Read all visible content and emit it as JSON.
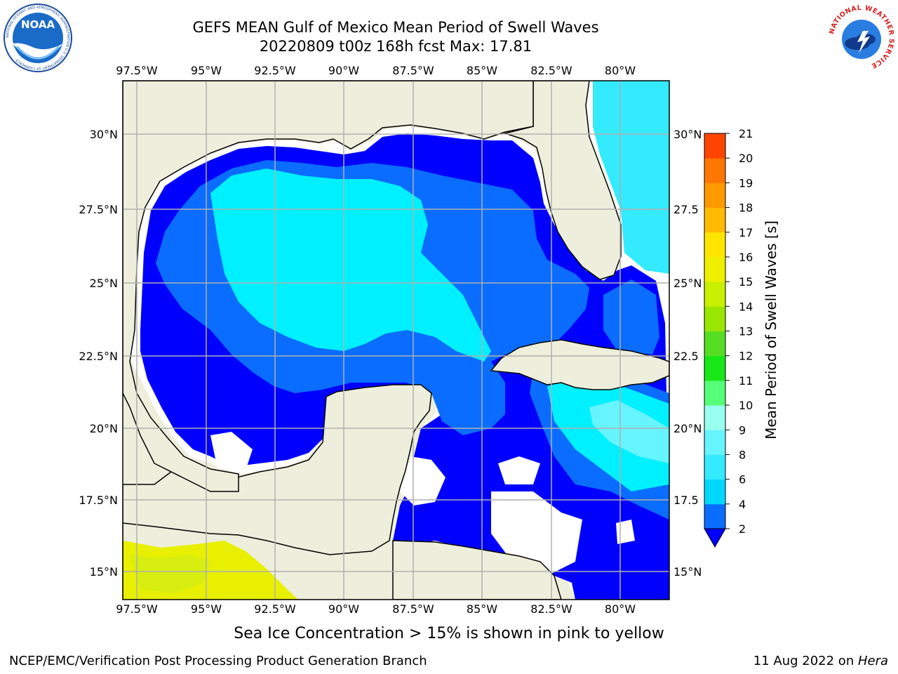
{
  "header": {
    "title_line1": "GEFS MEAN Gulf of Mexico Mean Period of Swell Waves",
    "title_line2": "20220809 t00z 168h fcst   Max: 17.81"
  },
  "logos": {
    "noaa_text": "NOAA",
    "noaa_ring": "NATIONAL OCEANIC AND ATMOSPHERIC ADMINISTRATION  U.S. DEPARTMENT OF COMMERCE",
    "nws_ring": "NATIONAL WEATHER SERVICE"
  },
  "map": {
    "lon_labels": [
      "97.5°W",
      "95°W",
      "92.5°W",
      "90°W",
      "87.5°W",
      "85°W",
      "82.5°W",
      "80°W"
    ],
    "lat_labels": [
      "30°N",
      "27.5°N",
      "25°N",
      "22.5°N",
      "20°N",
      "17.5°N",
      "15°N"
    ],
    "lat_labels_right": [
      "30°N",
      "27.5",
      "25°N",
      "22.5",
      "20°N",
      "17.5",
      "15°N"
    ],
    "colors": {
      "land": "#eeeedd",
      "ocean_missing": "#ffffff",
      "gridline": "#b0b0b0"
    }
  },
  "colorbar": {
    "title": "Mean Period of Swell Waves [s]",
    "ticks": [
      "2",
      "4",
      "6",
      "8",
      "9",
      "10",
      "11",
      "12",
      "13",
      "14",
      "15",
      "16",
      "17",
      "18",
      "19",
      "20",
      "21"
    ],
    "colors": [
      "#0a6dff",
      "#00d8ff",
      "#33eaff",
      "#66f4ff",
      "#99ffee",
      "#55ff77",
      "#18e818",
      "#55dd22",
      "#99e600",
      "#c8f000",
      "#eef000",
      "#ffe600",
      "#ffbb00",
      "#ff9900",
      "#ff7700",
      "#ff4400",
      "#ff0000"
    ],
    "under_color": "#0000ff"
  },
  "notes": {
    "ice": "Sea Ice Concentration > 15% is shown in pink to yellow"
  },
  "footer": {
    "left": "NCEP/EMC/Verification Post Processing Product Generation Branch",
    "right_date": "11 Aug 2022 on ",
    "right_host": "Hera"
  }
}
